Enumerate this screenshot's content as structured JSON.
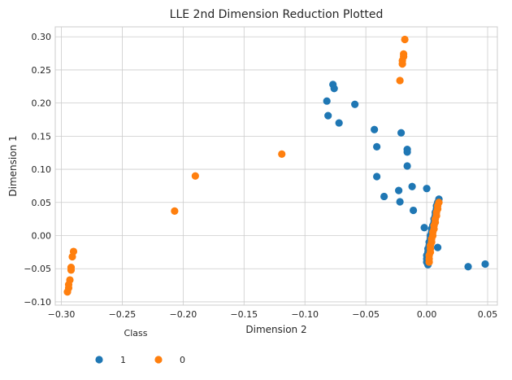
{
  "chart_data": {
    "type": "scatter",
    "title": "LLE 2nd Dimension Reduction Plotted",
    "xlabel": "Dimension 2",
    "ylabel": "Dimension 1",
    "xlim": [
      -0.305,
      0.058
    ],
    "ylim": [
      -0.105,
      0.315
    ],
    "xticks": [
      -0.3,
      -0.25,
      -0.2,
      -0.15,
      -0.1,
      -0.05,
      0.0,
      0.05
    ],
    "xtick_labels": [
      "−0.30",
      "−0.25",
      "−0.20",
      "−0.15",
      "−0.10",
      "−0.05",
      "0.00",
      "0.05"
    ],
    "yticks": [
      -0.1,
      -0.05,
      0.0,
      0.05,
      0.1,
      0.15,
      0.2,
      0.25,
      0.3
    ],
    "ytick_labels": [
      "−0.10",
      "−0.05",
      "0.00",
      "0.05",
      "0.10",
      "0.15",
      "0.20",
      "0.25",
      "0.30"
    ],
    "grid": true,
    "legend": {
      "title": "Class",
      "placement": "below-left",
      "ncol": 2
    },
    "series": [
      {
        "name": "1",
        "color": "#1f77b4",
        "points": [
          [
            -0.077,
            0.228
          ],
          [
            -0.076,
            0.222
          ],
          [
            -0.082,
            0.203
          ],
          [
            -0.081,
            0.181
          ],
          [
            -0.072,
            0.17
          ],
          [
            -0.059,
            0.198
          ],
          [
            -0.043,
            0.16
          ],
          [
            -0.041,
            0.134
          ],
          [
            -0.021,
            0.155
          ],
          [
            -0.016,
            0.13
          ],
          [
            -0.016,
            0.126
          ],
          [
            -0.016,
            0.105
          ],
          [
            -0.041,
            0.089
          ],
          [
            -0.035,
            0.059
          ],
          [
            -0.023,
            0.068
          ],
          [
            -0.022,
            0.051
          ],
          [
            -0.012,
            0.074
          ],
          [
            -0.011,
            0.038
          ],
          [
            0.0,
            0.071
          ],
          [
            -0.002,
            0.012
          ],
          [
            0.01,
            0.055
          ],
          [
            0.009,
            0.05
          ],
          [
            0.008,
            0.045
          ],
          [
            0.008,
            0.04
          ],
          [
            0.007,
            0.035
          ],
          [
            0.007,
            0.03
          ],
          [
            0.006,
            0.025
          ],
          [
            0.006,
            0.02
          ],
          [
            0.005,
            0.015
          ],
          [
            0.004,
            0.01
          ],
          [
            0.004,
            0.005
          ],
          [
            0.003,
            0.0
          ],
          [
            0.003,
            -0.005
          ],
          [
            0.002,
            -0.01
          ],
          [
            0.002,
            -0.015
          ],
          [
            0.001,
            -0.02
          ],
          [
            0.001,
            -0.025
          ],
          [
            0.0,
            -0.03
          ],
          [
            0.0,
            -0.035
          ],
          [
            0.0,
            -0.04
          ],
          [
            0.001,
            -0.044
          ],
          [
            0.009,
            -0.018
          ],
          [
            0.034,
            -0.047
          ],
          [
            0.048,
            -0.043
          ]
        ]
      },
      {
        "name": "0",
        "color": "#ff7f0e",
        "points": [
          [
            -0.018,
            0.296
          ],
          [
            -0.019,
            0.274
          ],
          [
            -0.019,
            0.27
          ],
          [
            -0.02,
            0.264
          ],
          [
            -0.02,
            0.259
          ],
          [
            -0.022,
            0.234
          ],
          [
            -0.119,
            0.123
          ],
          [
            -0.19,
            0.09
          ],
          [
            -0.207,
            0.037
          ],
          [
            -0.29,
            -0.024
          ],
          [
            -0.291,
            -0.032
          ],
          [
            -0.292,
            -0.048
          ],
          [
            -0.292,
            -0.052
          ],
          [
            -0.293,
            -0.067
          ],
          [
            -0.294,
            -0.074
          ],
          [
            -0.294,
            -0.079
          ],
          [
            -0.295,
            -0.085
          ],
          [
            0.01,
            0.05
          ],
          [
            0.009,
            0.045
          ],
          [
            0.009,
            0.04
          ],
          [
            0.008,
            0.035
          ],
          [
            0.008,
            0.03
          ],
          [
            0.007,
            0.025
          ],
          [
            0.007,
            0.02
          ],
          [
            0.006,
            0.015
          ],
          [
            0.006,
            0.01
          ],
          [
            0.005,
            0.005
          ],
          [
            0.005,
            0.0
          ],
          [
            0.004,
            -0.005
          ],
          [
            0.004,
            -0.01
          ],
          [
            0.003,
            -0.015
          ],
          [
            0.003,
            -0.02
          ],
          [
            0.003,
            -0.025
          ],
          [
            0.002,
            -0.03
          ],
          [
            0.002,
            -0.035
          ],
          [
            0.002,
            -0.04
          ]
        ]
      }
    ]
  }
}
